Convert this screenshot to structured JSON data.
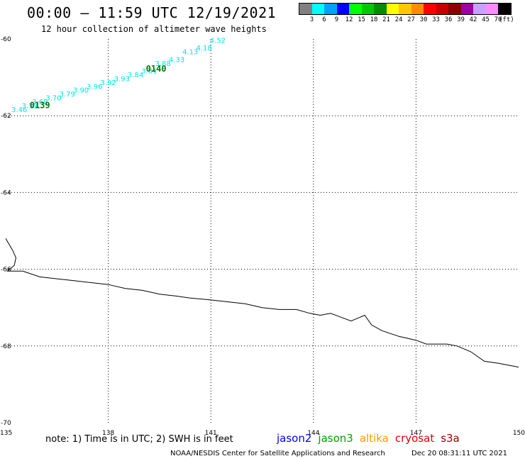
{
  "header": {
    "title": "00:00 – 11:59 UTC 12/19/2021",
    "subtitle": "12 hour collection of altimeter wave heights"
  },
  "legend": {
    "unit": "(ft)",
    "bins": [
      {
        "label": "3",
        "color": "#808080"
      },
      {
        "label": "6",
        "color": "#00ffff"
      },
      {
        "label": "9",
        "color": "#00a0ff"
      },
      {
        "label": "12",
        "color": "#0000ff"
      },
      {
        "label": "15",
        "color": "#00ff00"
      },
      {
        "label": "18",
        "color": "#00c800"
      },
      {
        "label": "21",
        "color": "#008c00"
      },
      {
        "label": "24",
        "color": "#ffff00"
      },
      {
        "label": "27",
        "color": "#ffc800"
      },
      {
        "label": "30",
        "color": "#ff8c00"
      },
      {
        "label": "33",
        "color": "#ff0000"
      },
      {
        "label": "36",
        "color": "#c80000"
      },
      {
        "label": "39",
        "color": "#8c0000"
      },
      {
        "label": "42",
        "color": "#a000a0"
      },
      {
        "label": "45",
        "color": "#c8a0ff"
      },
      {
        "label": "70",
        "color": "#ff8cff"
      },
      {
        "label": "",
        "color": "#000000"
      }
    ]
  },
  "map": {
    "lon_range": [
      135,
      150
    ],
    "lat_range": [
      -70,
      -60
    ],
    "lon_ticks": [
      "135",
      "138",
      "141",
      "144",
      "147",
      "150"
    ],
    "lat_ticks": [
      "-60",
      "-62",
      "-64",
      "-66",
      "-68",
      "-70"
    ],
    "track_color": "#00e5e5",
    "time_label_color": "#007a00",
    "tracks": [
      {
        "time_label": "0139",
        "label_lon": 136.0,
        "label_lat": -61.8,
        "points": [
          {
            "lon": 135.4,
            "lat": -61.9,
            "swh": "3.46"
          },
          {
            "lon": 135.7,
            "lat": -61.8,
            "swh": "3.39"
          },
          {
            "lon": 136.0,
            "lat": -61.7,
            "swh": "3.68"
          },
          {
            "lon": 136.4,
            "lat": -61.6,
            "swh": "3.70"
          },
          {
            "lon": 136.8,
            "lat": -61.5,
            "swh": "3.79"
          },
          {
            "lon": 137.2,
            "lat": -61.4,
            "swh": "3.90"
          },
          {
            "lon": 137.6,
            "lat": -61.3,
            "swh": "3.96"
          },
          {
            "lon": 138.0,
            "lat": -61.2,
            "swh": "3.92"
          },
          {
            "lon": 138.4,
            "lat": -61.1,
            "swh": "3.93"
          },
          {
            "lon": 138.8,
            "lat": -61.0,
            "swh": "3.84"
          },
          {
            "lon": 139.2,
            "lat": -60.9,
            "swh": "3.81"
          },
          {
            "lon": 139.6,
            "lat": -60.7,
            "swh": "3.88"
          },
          {
            "lon": 140.0,
            "lat": -60.6,
            "swh": "4.33"
          },
          {
            "lon": 140.4,
            "lat": -60.4,
            "swh": "4.13"
          },
          {
            "lon": 140.8,
            "lat": -60.3,
            "swh": "4.18"
          },
          {
            "lon": 141.2,
            "lat": -60.1,
            "swh": "4.52"
          }
        ]
      },
      {
        "time_label": "0140",
        "label_lon": 139.4,
        "label_lat": -60.85,
        "points": []
      }
    ],
    "coastline": [
      [
        135.0,
        -65.2
      ],
      [
        135.2,
        -65.5
      ],
      [
        135.3,
        -65.7
      ],
      [
        135.25,
        -65.9
      ],
      [
        135.05,
        -66.05
      ],
      [
        135.5,
        -66.05
      ],
      [
        136.0,
        -66.2
      ],
      [
        136.5,
        -66.25
      ],
      [
        137.0,
        -66.3
      ],
      [
        137.5,
        -66.35
      ],
      [
        138.0,
        -66.4
      ],
      [
        138.5,
        -66.5
      ],
      [
        139.0,
        -66.55
      ],
      [
        139.5,
        -66.65
      ],
      [
        140.0,
        -66.7
      ],
      [
        140.4,
        -66.75
      ],
      [
        141.0,
        -66.8
      ],
      [
        141.5,
        -66.85
      ],
      [
        142.0,
        -66.9
      ],
      [
        142.5,
        -67.0
      ],
      [
        143.0,
        -67.05
      ],
      [
        143.5,
        -67.05
      ],
      [
        143.9,
        -67.15
      ],
      [
        144.2,
        -67.2
      ],
      [
        144.5,
        -67.15
      ],
      [
        144.8,
        -67.25
      ],
      [
        145.1,
        -67.35
      ],
      [
        145.5,
        -67.2
      ],
      [
        145.7,
        -67.45
      ],
      [
        146.0,
        -67.6
      ],
      [
        146.5,
        -67.75
      ],
      [
        147.0,
        -67.85
      ],
      [
        147.3,
        -67.95
      ],
      [
        147.6,
        -67.95
      ],
      [
        147.9,
        -67.95
      ],
      [
        148.2,
        -68.0
      ],
      [
        148.6,
        -68.15
      ],
      [
        149.0,
        -68.4
      ],
      [
        149.4,
        -68.45
      ],
      [
        150.0,
        -68.55
      ]
    ]
  },
  "footer": {
    "note": "note: 1) Time is in UTC; 2) SWH is in feet",
    "credit": "NOAA/NESDIS Center for Satellite Applications and Research",
    "timestamp": "Dec 20 08:31:11 UTC 2021",
    "satellites": [
      {
        "name": "jason2",
        "color": "#0000ff"
      },
      {
        "name": "jason3",
        "color": "#00a000"
      },
      {
        "name": "altika",
        "color": "#ff9900"
      },
      {
        "name": "cryosat",
        "color": "#e00000"
      },
      {
        "name": "s3a",
        "color": "#990000"
      }
    ]
  }
}
